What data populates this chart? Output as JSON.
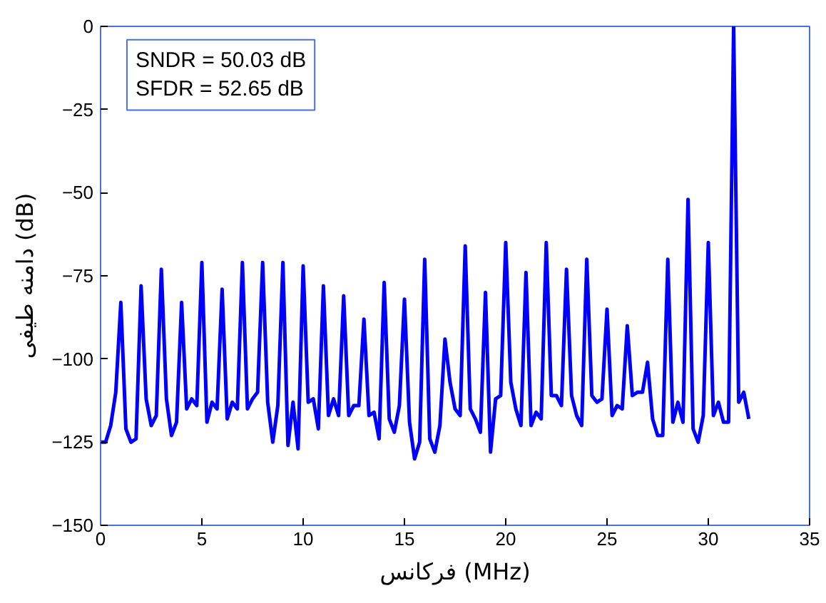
{
  "chart_data": {
    "type": "line",
    "xlabel": "فرکانس (MHz)",
    "ylabel": "دامنه طیفی (dB)",
    "annotations": [
      "SNDR = 50.03 dB",
      "SFDR = 52.65 dB"
    ],
    "xlim": [
      0,
      35
    ],
    "xticks": [
      0,
      5,
      10,
      15,
      20,
      25,
      30,
      35
    ],
    "ylim": [
      -150,
      0
    ],
    "yticks": [
      {
        "value": -150,
        "label": "−150"
      },
      {
        "value": -125,
        "label": "−125"
      },
      {
        "value": -100,
        "label": "−100"
      },
      {
        "value": -75,
        "label": "−75"
      },
      {
        "value": -50,
        "label": "−50"
      },
      {
        "value": -25,
        "label": "−25"
      },
      0
    ],
    "grid": false,
    "marker": "none",
    "line_style": "solid",
    "series": [
      {
        "color": "#0000ff",
        "x": [
          0,
          0.25,
          0.5,
          0.75,
          1,
          1.25,
          1.5,
          1.75,
          2,
          2.25,
          2.5,
          2.75,
          3,
          3.25,
          3.5,
          3.75,
          4,
          4.25,
          4.5,
          4.75,
          5,
          5.25,
          5.5,
          5.75,
          6,
          6.25,
          6.5,
          6.75,
          7,
          7.25,
          7.5,
          7.75,
          8,
          8.25,
          8.5,
          8.75,
          9,
          9.25,
          9.5,
          9.75,
          10,
          10.25,
          10.5,
          10.75,
          11,
          11.25,
          11.5,
          11.75,
          12,
          12.25,
          12.5,
          12.75,
          13,
          13.25,
          13.5,
          13.75,
          14,
          14.25,
          14.5,
          14.75,
          15,
          15.25,
          15.5,
          15.75,
          16,
          16.25,
          16.5,
          16.75,
          17,
          17.25,
          17.5,
          17.75,
          18,
          18.25,
          18.5,
          18.75,
          19,
          19.25,
          19.5,
          19.75,
          20,
          20.25,
          20.5,
          20.75,
          21,
          21.25,
          21.5,
          21.75,
          22,
          22.25,
          22.5,
          22.75,
          23,
          23.25,
          23.5,
          23.75,
          24,
          24.25,
          24.5,
          24.75,
          25,
          25.25,
          25.5,
          25.75,
          26,
          26.25,
          26.5,
          26.75,
          27,
          27.25,
          27.5,
          27.75,
          28,
          28.25,
          28.5,
          28.75,
          29,
          29.25,
          29.5,
          29.75,
          30,
          30.25,
          30.5,
          30.75,
          31,
          31.25,
          31.5,
          31.75,
          32
        ],
        "values": [
          -125,
          -125,
          -120,
          -110,
          -83,
          -121,
          -125,
          -124,
          -78,
          -112,
          -120,
          -117,
          -73,
          -112,
          -123,
          -119,
          -83,
          -115,
          -112,
          -114,
          -71,
          -119,
          -113,
          -115,
          -79,
          -118,
          -113,
          -115,
          -71,
          -115,
          -112,
          -110,
          -71,
          -113,
          -125,
          -114,
          -71,
          -126,
          -113,
          -127,
          -72,
          -113,
          -112,
          -121,
          -78,
          -117,
          -112,
          -117,
          -81,
          -117,
          -114,
          -114,
          -88,
          -117,
          -116,
          -124,
          -77,
          -118,
          -122,
          -114,
          -82,
          -119,
          -130,
          -125,
          -70,
          -124,
          -128,
          -120,
          -94,
          -107,
          -115,
          -117,
          -66,
          -115,
          -118,
          -122,
          -80,
          -128,
          -112,
          -111,
          -65,
          -107,
          -115,
          -120,
          -74,
          -120,
          -116,
          -118,
          -65,
          -111,
          -111,
          -114,
          -73,
          -111,
          -117,
          -120,
          -70,
          -111,
          -113,
          -112,
          -85,
          -117,
          -114,
          -115,
          -90,
          -111,
          -110,
          -110,
          -101,
          -118,
          -123,
          -123,
          -70,
          -119,
          -113,
          -119,
          -52,
          -121,
          -125,
          -117,
          -65,
          -117,
          -113,
          -119,
          -119,
          0,
          -113,
          -110,
          -118
        ]
      }
    ]
  }
}
